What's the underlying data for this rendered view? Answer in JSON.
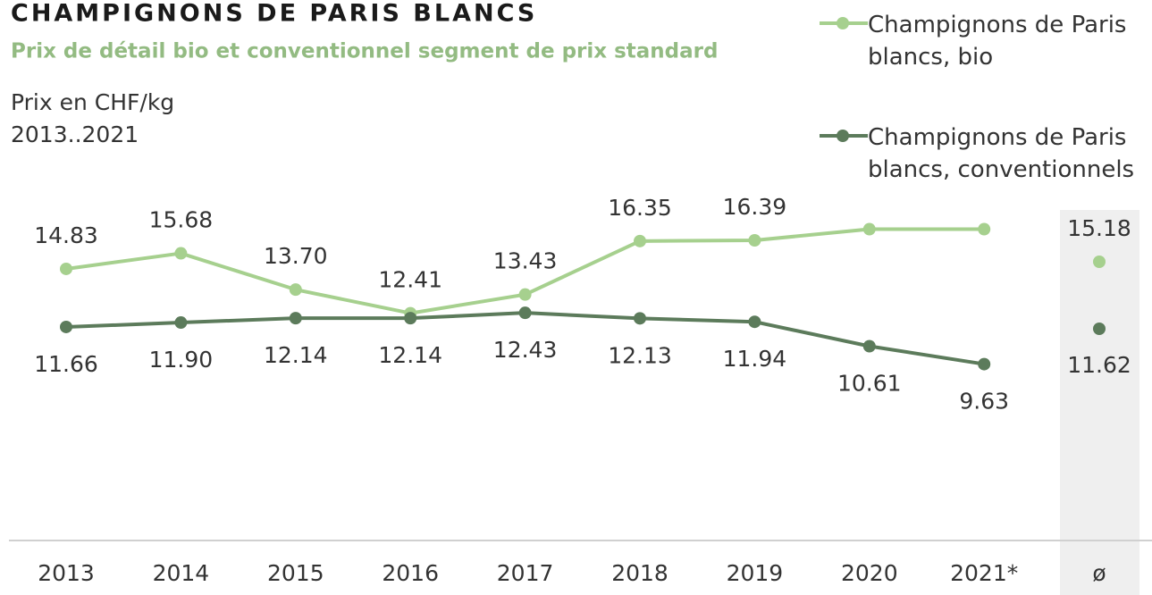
{
  "chart_data": {
    "type": "line",
    "title": "CHAMPIGNONS DE PARIS BLANCS",
    "subtitle": "Prix de détail bio et conventionnel  segment de prix standard",
    "y_label": "Prix en CHF/kg",
    "period": "2013..2021",
    "categories": [
      "2013",
      "2014",
      "2015",
      "2016",
      "2017",
      "2018",
      "2019",
      "2020",
      "2021*"
    ],
    "average_category": "ø",
    "ylim": [
      0,
      20
    ],
    "series": [
      {
        "name": "Champignons de Paris blancs, bio",
        "color": "#a6d08e",
        "values": [
          14.83,
          15.68,
          13.7,
          12.41,
          13.43,
          16.35,
          16.39,
          17.0,
          17.0
        ],
        "value_labels": [
          "14.83",
          "15.68",
          "13.70",
          "12.41",
          "13.43",
          "16.35",
          "16.39",
          null,
          null
        ],
        "average": 15.18
      },
      {
        "name": "Champignons de Paris blancs, conventionnels",
        "color": "#5c7b5b",
        "values": [
          11.66,
          11.9,
          12.14,
          12.14,
          12.43,
          12.13,
          11.94,
          10.61,
          9.63
        ],
        "value_labels": [
          "11.66",
          "11.90",
          "12.14",
          "12.14",
          "12.43",
          "12.13",
          "11.94",
          "10.61",
          "9.63"
        ],
        "average": 11.62
      }
    ]
  }
}
